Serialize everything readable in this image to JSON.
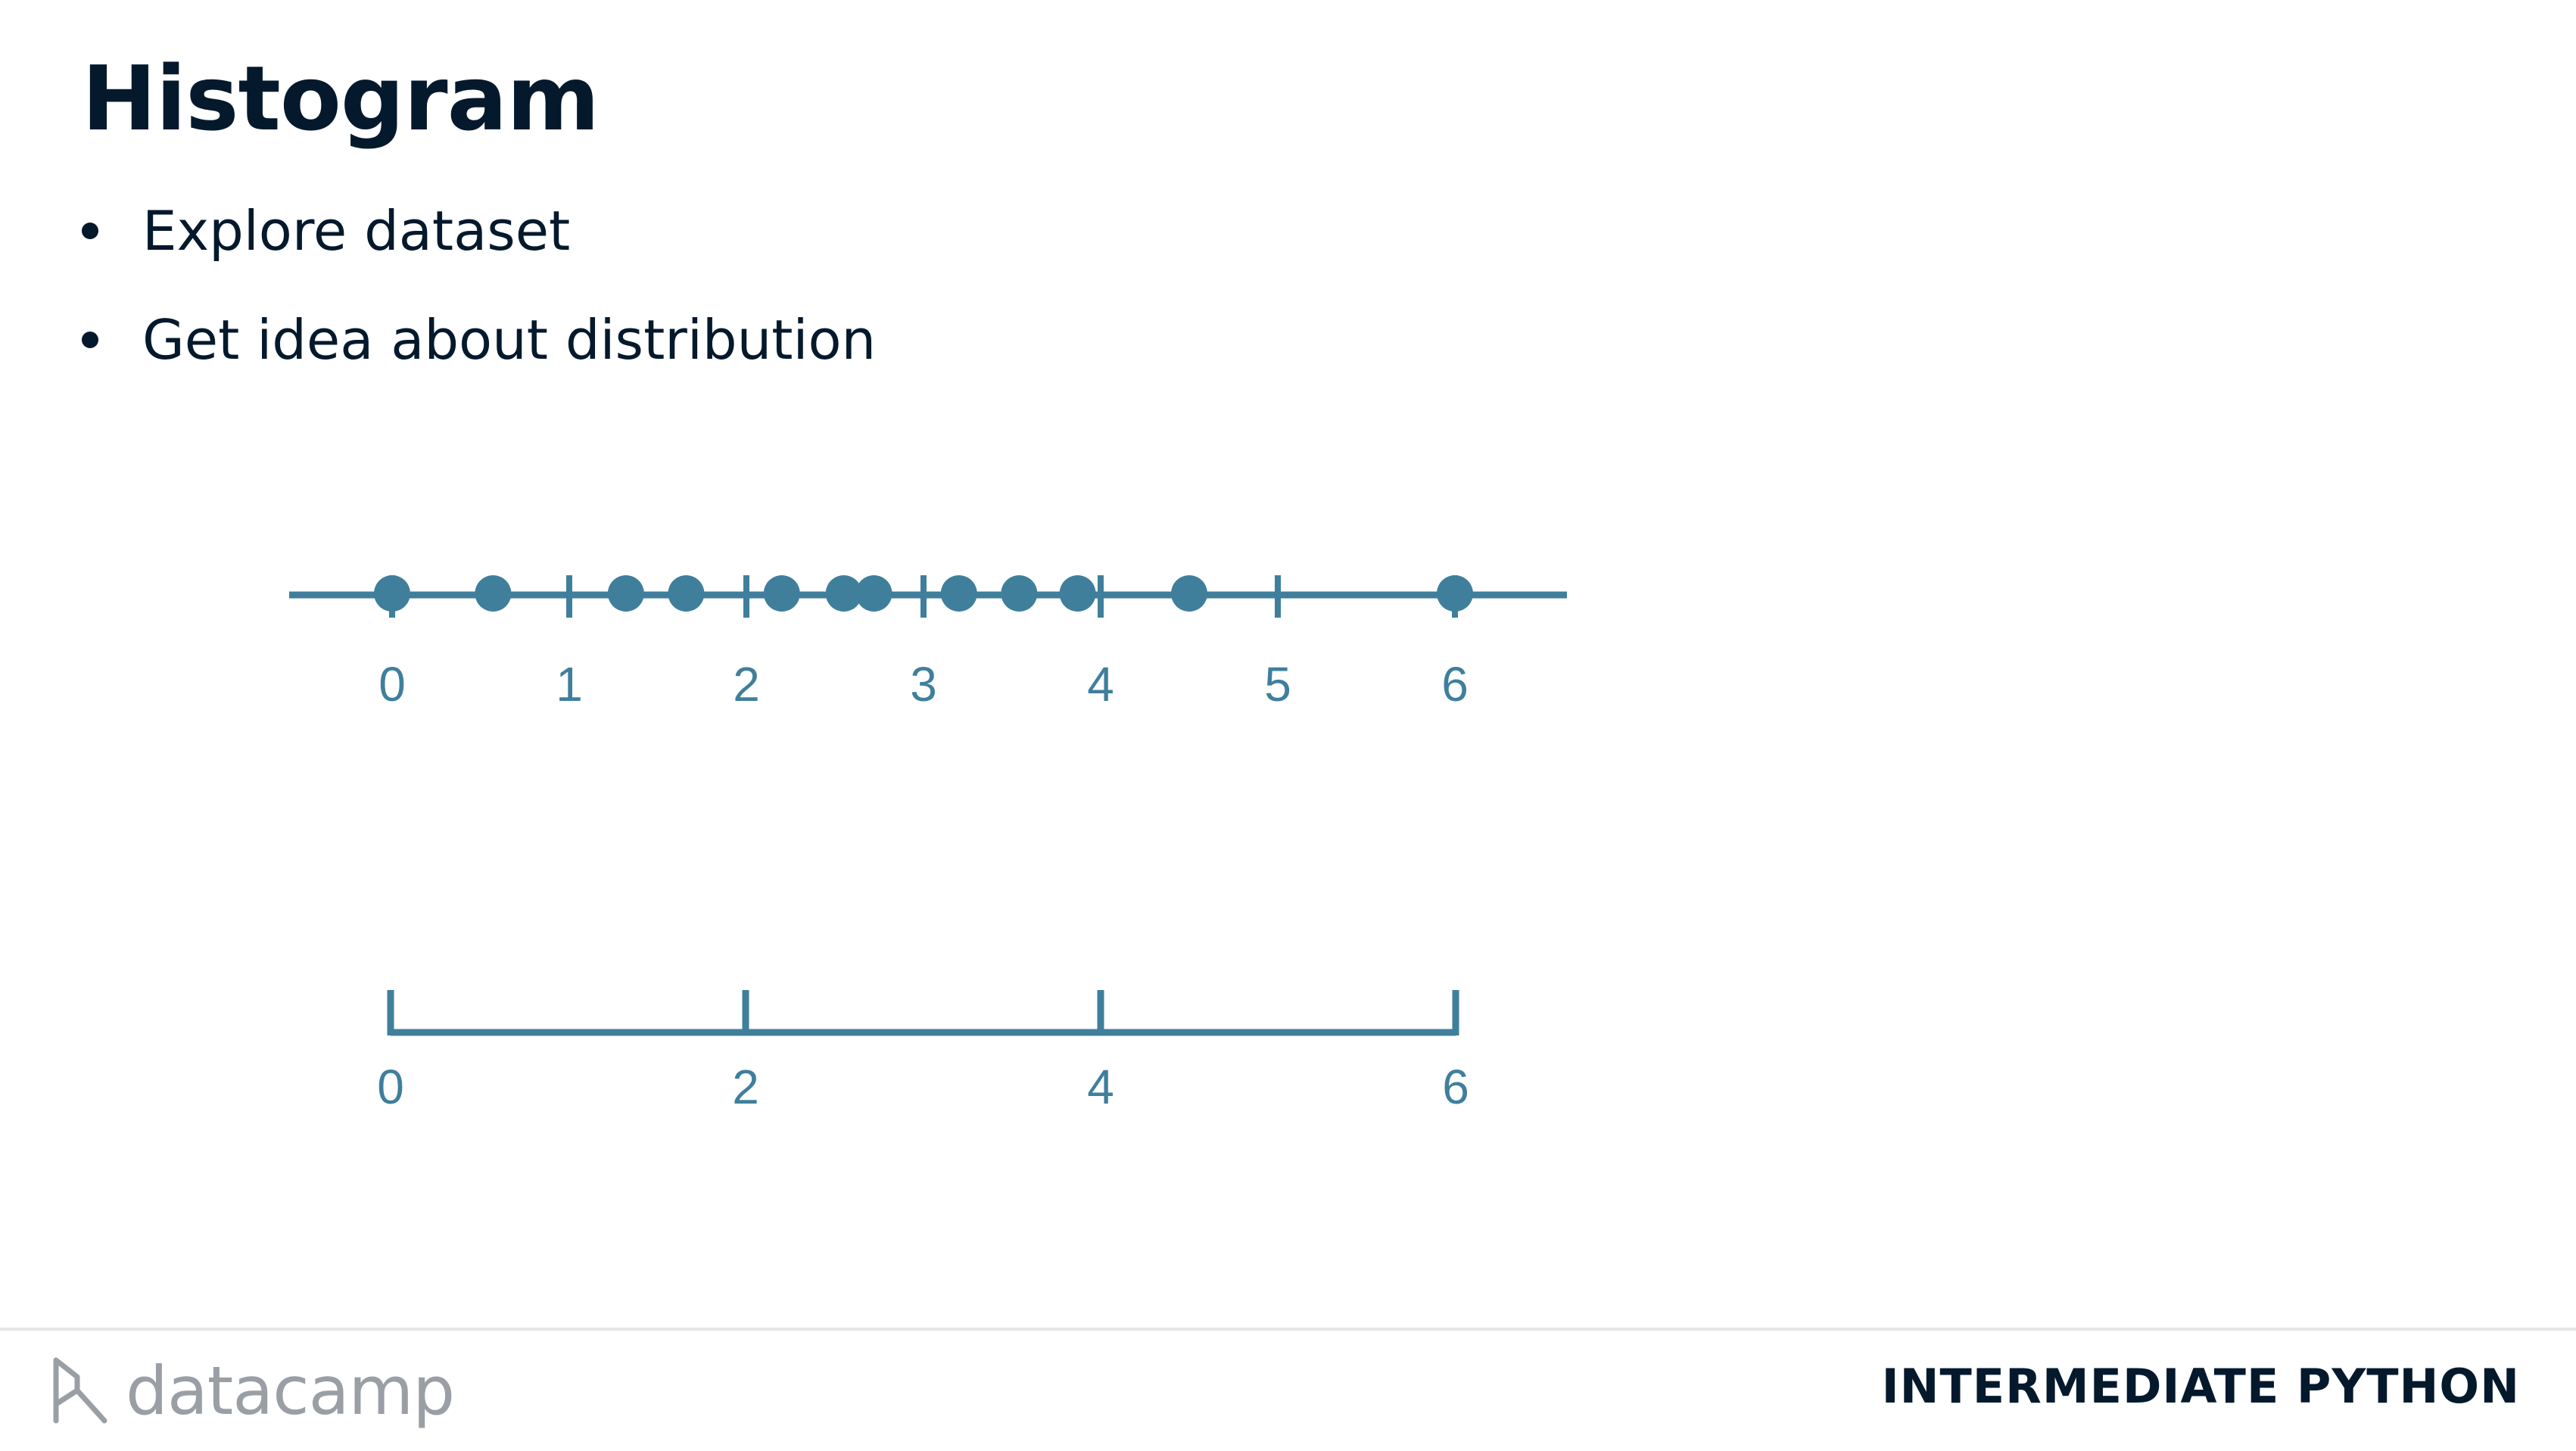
{
  "slide": {
    "title": "Histogram",
    "bullets": [
      "Explore dataset",
      "Get idea about distribution"
    ]
  },
  "colors": {
    "accent": "#3f7f9c",
    "text": "#05192d",
    "logo": "#9a9fa5"
  },
  "chart_data": [
    {
      "type": "scatter",
      "title": "",
      "xlabel": "",
      "ylabel": "",
      "xlim": [
        -0.6,
        6.6
      ],
      "x_ticks": [
        0,
        1,
        2,
        3,
        4,
        5,
        6
      ],
      "x_tick_labels": [
        "0",
        "1",
        "2",
        "3",
        "4",
        "5",
        "6"
      ],
      "values": [
        0.0,
        0.57,
        1.32,
        1.66,
        2.2,
        2.55,
        2.72,
        3.2,
        3.54,
        3.87,
        4.5,
        6.0
      ],
      "grid": false
    },
    {
      "type": "bar",
      "title": "",
      "xlabel": "",
      "ylabel": "",
      "xlim": [
        0,
        6
      ],
      "bin_edges": [
        0,
        2,
        4,
        6
      ],
      "x_tick_labels": [
        "0",
        "2",
        "4",
        "6"
      ],
      "grid": false
    }
  ],
  "icons": {
    "logo": "datacamp-logo-icon"
  },
  "footer": {
    "logo_text": "datacamp",
    "course": "INTERMEDIATE PYTHON"
  }
}
